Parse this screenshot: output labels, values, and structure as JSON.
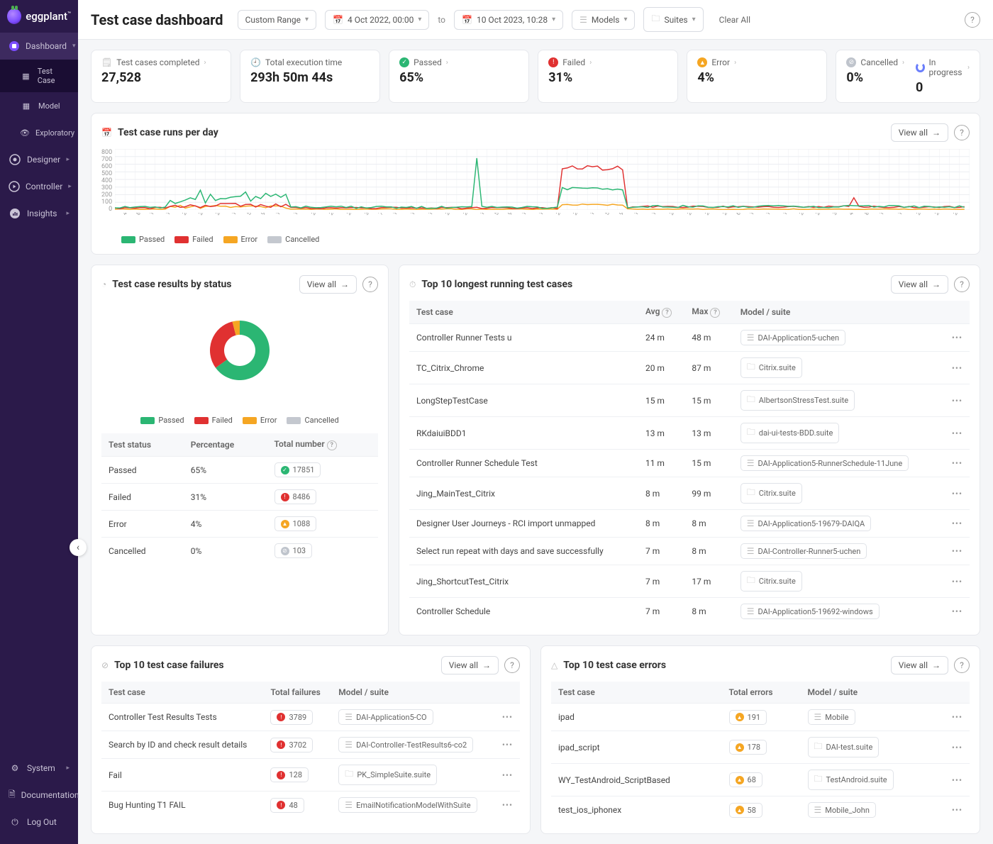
{
  "brand": "eggplant",
  "page_title": "Test case dashboard",
  "filters": {
    "range_label": "Custom Range",
    "from": "4 Oct 2022, 00:00",
    "to_sep": "to",
    "to": "10 Oct 2023, 10:28",
    "models": "Models",
    "suites": "Suites",
    "clear": "Clear All"
  },
  "nav": {
    "dashboard": "Dashboard",
    "test_case": "Test Case",
    "model": "Model",
    "exploratory": "Exploratory",
    "designer": "Designer",
    "controller": "Controller",
    "insights": "Insights",
    "system": "System",
    "documentation": "Documentation",
    "logout": "Log Out"
  },
  "kpi": {
    "completed_label": "Test cases completed",
    "completed_value": "27,528",
    "exec_label": "Total execution time",
    "exec_value": "293h 50m 44s",
    "passed_label": "Passed",
    "passed_value": "65%",
    "failed_label": "Failed",
    "failed_value": "31%",
    "error_label": "Error",
    "error_value": "4%",
    "cancelled_label": "Cancelled",
    "cancelled_value": "0%",
    "progress_label": "In progress",
    "progress_value": "0"
  },
  "runs_chart": {
    "title": "Test case runs per day",
    "view_all": "View all",
    "yticks": [
      "800",
      "700",
      "600",
      "500",
      "400",
      "300",
      "200",
      "100",
      "0"
    ],
    "colors": {
      "passed": "#2bb673",
      "failed": "#e03131",
      "error": "#f5a623",
      "cancelled": "#c4c8cf",
      "grid": "#eceef2"
    },
    "legend": {
      "passed": "Passed",
      "failed": "Failed",
      "error": "Error",
      "cancelled": "Cancelled"
    },
    "xticks": [
      "4 Oct",
      "8 Oct",
      "12 Oct",
      "16 Oct",
      "20 Oct",
      "24 Oct",
      "28 Oct",
      "1 Nov",
      "5 Nov",
      "9 Nov",
      "13 Nov",
      "17 Nov",
      "21 Nov",
      "25 Nov",
      "29 Nov",
      "3 Dec",
      "7 Dec",
      "11 Dec",
      "15 Dec",
      "19 Dec",
      "23 Dec",
      "28 Jan",
      "1 Feb",
      "5 Feb",
      "9 Feb",
      "13 Feb",
      "17 Feb",
      "21 Feb",
      "25 Feb",
      "1 Mar",
      "5 Mar",
      "9 Mar",
      "13 Mar",
      "17 Mar",
      "21 Mar",
      "25 Mar",
      "29 Mar",
      "2 Apr",
      "6 Apr",
      "10 Apr",
      "14 Apr",
      "18 Apr",
      "22 Apr",
      "26 Apr",
      "30 Apr",
      "4 May",
      "8 May",
      "12 May",
      "16 May",
      "20 May",
      "24 May",
      "28 May",
      "1 Jun",
      "5 Jun",
      "9 Jun",
      "13 Jun",
      "17 Jun",
      "21 Jun",
      "25 Jun",
      "29 Jun",
      "3 Jul",
      "7 Jul",
      "11 Jul",
      "15 Jul",
      "19 Jul",
      "23 Jul",
      "27 Jul",
      "31 Jul",
      "4 Aug",
      "8 Aug",
      "12 Aug",
      "16 Aug",
      "20 Aug",
      "24 Aug",
      "28 Aug",
      "1 Sep",
      "5 Sep",
      "9 Sep",
      "13 Sep",
      "17 Sep",
      "21 Sep",
      "25 Sep",
      "29 Sep",
      "3 Oct",
      "7 Oct"
    ]
  },
  "status_card": {
    "title": "Test case results by status",
    "view_all": "View all",
    "legend": {
      "passed": "Passed",
      "failed": "Failed",
      "error": "Error",
      "cancelled": "Cancelled"
    },
    "donut": [
      {
        "label": "Passed",
        "pct": 65,
        "color": "#2bb673"
      },
      {
        "label": "Failed",
        "pct": 31,
        "color": "#e03131"
      },
      {
        "label": "Error",
        "pct": 4,
        "color": "#f5a623"
      },
      {
        "label": "Cancelled",
        "pct": 0,
        "color": "#c4c8cf"
      }
    ],
    "table_head": {
      "status": "Test status",
      "pct": "Percentage",
      "total": "Total number"
    },
    "rows": [
      {
        "status": "Passed",
        "pct": "65%",
        "total": "17851",
        "dot": "green"
      },
      {
        "status": "Failed",
        "pct": "31%",
        "total": "8486",
        "dot": "red"
      },
      {
        "status": "Error",
        "pct": "4%",
        "total": "1088",
        "dot": "amber"
      },
      {
        "status": "Cancelled",
        "pct": "0%",
        "total": "103",
        "dot": "grey"
      }
    ]
  },
  "longest": {
    "title": "Top 10 longest running test cases",
    "view_all": "View all",
    "head": {
      "case": "Test case",
      "avg": "Avg",
      "max": "Max",
      "model": "Model / suite"
    },
    "rows": [
      {
        "case": "Controller Runner Tests u",
        "avg": "24 m",
        "max": "48 m",
        "model": "DAI-Application5-uchen",
        "type": "model"
      },
      {
        "case": "TC_Citrix_Chrome",
        "avg": "20 m",
        "max": "87 m",
        "model": "Citrix.suite",
        "type": "suite"
      },
      {
        "case": "LongStepTestCase",
        "avg": "15 m",
        "max": "15 m",
        "model": "AlbertsonStressTest.suite",
        "type": "suite"
      },
      {
        "case": "RKdaiuiBDD1",
        "avg": "13 m",
        "max": "13 m",
        "model": "dai-ui-tests-BDD.suite",
        "type": "suite"
      },
      {
        "case": "Controller Runner Schedule Test",
        "avg": "11 m",
        "max": "15 m",
        "model": "DAI-Application5-RunnerSchedule-11June",
        "type": "model"
      },
      {
        "case": "Jing_MainTest_Citrix",
        "avg": "8 m",
        "max": "99 m",
        "model": "Citrix.suite",
        "type": "suite"
      },
      {
        "case": "Designer User Journeys - RCI import unmapped",
        "avg": "8 m",
        "max": "8 m",
        "model": "DAI-Application5-19679-DAIQA",
        "type": "model"
      },
      {
        "case": "Select run repeat with days and save successfully",
        "avg": "7 m",
        "max": "8 m",
        "model": "DAI-Controller-Runner5-uchen",
        "type": "model"
      },
      {
        "case": "Jing_ShortcutTest_Citrix",
        "avg": "7 m",
        "max": "17 m",
        "model": "Citrix.suite",
        "type": "suite"
      },
      {
        "case": "Controller Schedule",
        "avg": "7 m",
        "max": "8 m",
        "model": "DAI-Application5-19692-windows",
        "type": "model"
      }
    ]
  },
  "failures": {
    "title": "Top 10 test case failures",
    "view_all": "View all",
    "head": {
      "case": "Test case",
      "total": "Total failures",
      "model": "Model / suite"
    },
    "rows": [
      {
        "case": "Controller Test Results Tests",
        "total": "3789",
        "model": "DAI-Application5-CO",
        "type": "model"
      },
      {
        "case": "Search by ID and check result details",
        "total": "3702",
        "model": "DAI-Controller-TestResults6-co2",
        "type": "model"
      },
      {
        "case": "Fail",
        "total": "128",
        "model": "PK_SimpleSuite.suite",
        "type": "suite"
      },
      {
        "case": "Bug Hunting T1 FAIL",
        "total": "48",
        "model": "EmailNotificationModelWithSuite",
        "type": "model"
      }
    ]
  },
  "errors": {
    "title": "Top 10 test case errors",
    "view_all": "View all",
    "head": {
      "case": "Test case",
      "total": "Total errors",
      "model": "Model / suite"
    },
    "rows": [
      {
        "case": "ipad",
        "total": "191",
        "model": "Mobile",
        "type": "model"
      },
      {
        "case": "ipad_script",
        "total": "178",
        "model": "DAI-test.suite",
        "type": "suite"
      },
      {
        "case": "WY_TestAndroid_ScriptBased",
        "total": "68",
        "model": "TestAndroid.suite",
        "type": "suite"
      },
      {
        "case": "test_ios_iphonex",
        "total": "58",
        "model": "Mobile_John",
        "type": "model"
      }
    ]
  }
}
